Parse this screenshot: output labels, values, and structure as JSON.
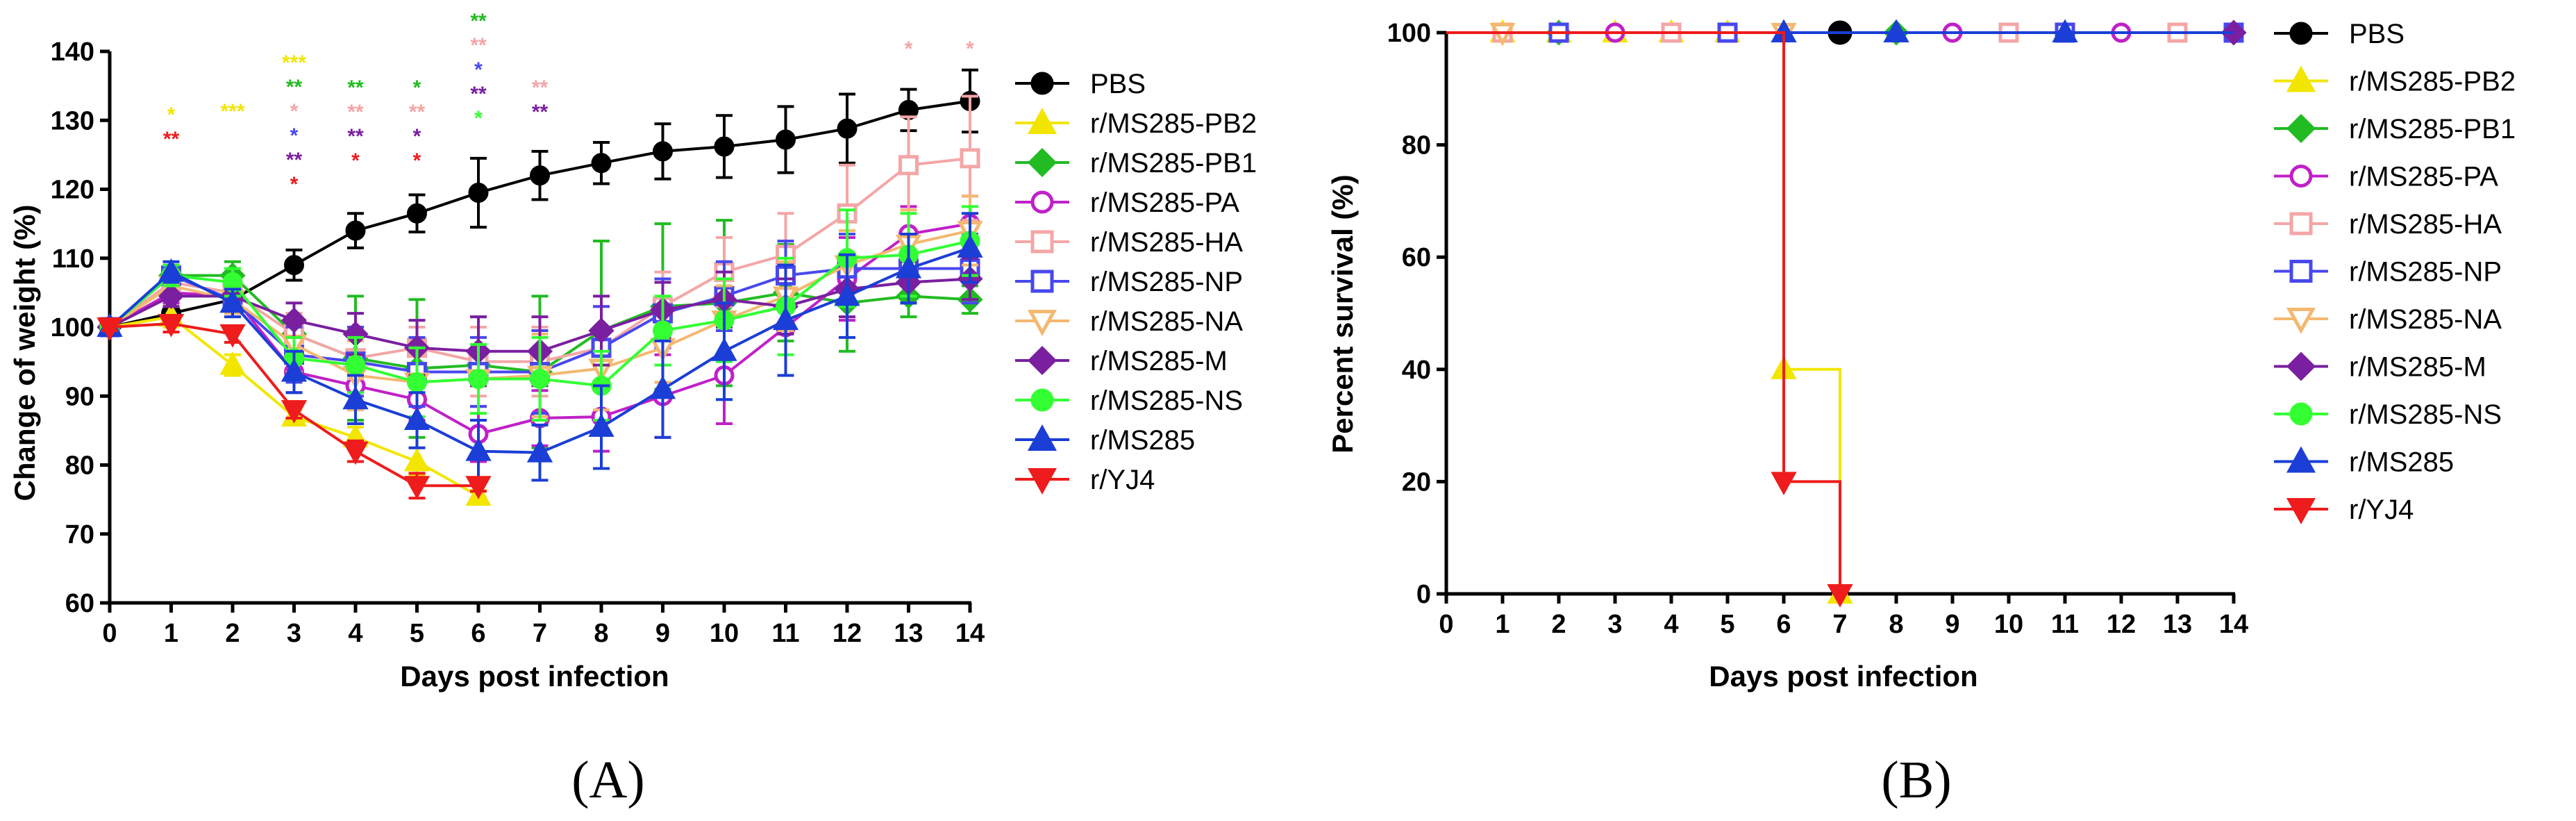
{
  "chart_data": [
    {
      "id": "A",
      "type": "line",
      "panel_label": "(A)",
      "xlabel": "Days post infection",
      "ylabel": "Change of weight (%)",
      "xlim": [
        0,
        14
      ],
      "ylim": [
        60,
        140
      ],
      "xticks": [
        0,
        1,
        2,
        3,
        4,
        5,
        6,
        7,
        8,
        9,
        10,
        11,
        12,
        13,
        14
      ],
      "yticks": [
        60,
        70,
        80,
        90,
        100,
        110,
        120,
        130,
        140
      ],
      "legend_position": "right",
      "series": [
        {
          "name": "PBS",
          "color": "#000000",
          "marker": "circle",
          "filled": true,
          "x": [
            0,
            1,
            2,
            3,
            4,
            5,
            6,
            7,
            8,
            9,
            10,
            11,
            12,
            13,
            14
          ],
          "y": [
            100,
            102,
            104,
            109,
            114,
            116.5,
            119.5,
            122,
            123.8,
            125.5,
            126.2,
            127.2,
            128.8,
            131.5,
            132.8
          ],
          "err": [
            0.5,
            1.5,
            1.5,
            2.2,
            2.5,
            2.7,
            5,
            3.5,
            3,
            4,
            4.5,
            4.8,
            5,
            3,
            4.5
          ]
        },
        {
          "name": "r/MS285-PB2",
          "color": "#f2e600",
          "marker": "triangle-up",
          "filled": true,
          "x": [
            0,
            1,
            2,
            3,
            4,
            5,
            6
          ],
          "y": [
            100,
            101.5,
            94.5,
            87,
            84,
            80.5,
            75.5
          ],
          "err": [
            0.5,
            1.5,
            1.5,
            1,
            1.5,
            2,
            0.8
          ]
        },
        {
          "name": "r/MS285-PB1",
          "color": "#22bb22",
          "marker": "diamond",
          "filled": true,
          "x": [
            0,
            1,
            2,
            3,
            4,
            5,
            6,
            7,
            8,
            9,
            10,
            11,
            12,
            13,
            14
          ],
          "y": [
            100,
            107.5,
            107.5,
            99,
            95.5,
            94,
            94.5,
            93.5,
            99.5,
            103,
            103.5,
            105,
            103.5,
            104.5,
            104
          ],
          "err": [
            0.5,
            1.5,
            2,
            3,
            9,
            10,
            7,
            11,
            13,
            12,
            12,
            7,
            7,
            3,
            2
          ]
        },
        {
          "name": "r/MS285-PA",
          "color": "#c020c8",
          "marker": "circle",
          "filled": false,
          "x": [
            0,
            1,
            2,
            3,
            4,
            5,
            6,
            7,
            8,
            9,
            10,
            11,
            12,
            13,
            14
          ],
          "y": [
            100,
            105,
            104.5,
            93.5,
            91.5,
            89.5,
            84.5,
            86.8,
            87,
            90,
            93,
            100,
            107,
            113.5,
            115
          ],
          "err": [
            0.5,
            1.5,
            1.5,
            3,
            3,
            3,
            4,
            4,
            5,
            6,
            7,
            7,
            6,
            4,
            4
          ]
        },
        {
          "name": "r/MS285-HA",
          "color": "#f4a6a6",
          "marker": "square",
          "filled": false,
          "x": [
            0,
            1,
            2,
            3,
            4,
            5,
            6,
            7,
            8,
            9,
            10,
            11,
            12,
            13,
            14
          ],
          "y": [
            100,
            106.5,
            105,
            99,
            95.5,
            97,
            95,
            95,
            97,
            103,
            108,
            110.5,
            116.5,
            123.5,
            124.5
          ],
          "err": [
            0.5,
            1.5,
            1.5,
            3,
            3,
            3,
            5,
            5,
            6,
            5,
            5,
            6,
            7,
            7,
            9
          ]
        },
        {
          "name": "r/MS285-NP",
          "color": "#4848ee",
          "marker": "square",
          "filled": false,
          "x": [
            0,
            1,
            2,
            3,
            4,
            5,
            6,
            7,
            8,
            9,
            10,
            11,
            12,
            13,
            14
          ],
          "y": [
            100,
            107.5,
            104,
            96,
            95,
            93.5,
            93.5,
            93.5,
            97,
            102,
            104.5,
            107.5,
            108.5,
            108.5,
            108.5
          ],
          "err": [
            0.5,
            1.5,
            2,
            4,
            5,
            5,
            5,
            6,
            6,
            5,
            5,
            5,
            5,
            5,
            5
          ]
        },
        {
          "name": "r/MS285-NA",
          "color": "#f4b870",
          "marker": "triangle-down",
          "filled": false,
          "x": [
            0,
            1,
            2,
            3,
            4,
            5,
            6,
            7,
            8,
            9,
            10,
            11,
            12,
            13,
            14
          ],
          "y": [
            100,
            106,
            104,
            97.5,
            93,
            92,
            92.5,
            93,
            94,
            97,
            101,
            104.5,
            109,
            112,
            114
          ],
          "err": [
            0.5,
            1.5,
            2,
            4,
            5,
            5,
            5,
            6,
            6,
            5,
            5,
            5,
            5,
            5,
            5
          ]
        },
        {
          "name": "r/MS285-M",
          "color": "#7a1fa0",
          "marker": "diamond",
          "filled": true,
          "x": [
            0,
            1,
            2,
            3,
            4,
            5,
            6,
            7,
            8,
            9,
            10,
            11,
            12,
            13,
            14
          ],
          "y": [
            100,
            104.5,
            104.5,
            101,
            99,
            97,
            96.5,
            96.5,
            99.5,
            102.5,
            104,
            103,
            105.5,
            106.5,
            107
          ],
          "err": [
            0.5,
            1.5,
            1.5,
            2.5,
            3,
            4,
            5,
            5,
            5,
            4,
            4,
            4,
            4,
            3,
            3
          ]
        },
        {
          "name": "r/MS285-NS",
          "color": "#33ff33",
          "marker": "circle",
          "filled": true,
          "x": [
            0,
            1,
            2,
            3,
            4,
            5,
            6,
            7,
            8,
            9,
            10,
            11,
            12,
            13,
            14
          ],
          "y": [
            100,
            107.5,
            106.5,
            95.5,
            94.5,
            92,
            92.5,
            92.5,
            91.5,
            99.5,
            101,
            103,
            110,
            110.5,
            112.5
          ],
          "err": [
            0.5,
            1.5,
            2,
            3,
            4,
            5,
            5,
            6,
            5,
            5,
            6,
            7,
            7,
            6,
            5
          ]
        },
        {
          "name": "r/MS285",
          "color": "#1a3ed6",
          "marker": "triangle-up",
          "filled": true,
          "x": [
            0,
            1,
            2,
            3,
            4,
            5,
            6,
            7,
            8,
            9,
            10,
            11,
            12,
            13,
            14
          ],
          "y": [
            100,
            108,
            103.5,
            93.5,
            89.5,
            86.5,
            82,
            81.8,
            85.5,
            91,
            96.5,
            101,
            104.5,
            108.5,
            111.5
          ],
          "err": [
            0.5,
            1.5,
            2,
            3,
            3.5,
            4,
            4.5,
            4,
            6,
            7,
            7,
            8,
            6,
            5,
            5
          ]
        },
        {
          "name": "r/YJ4",
          "color": "#ee1c1c",
          "marker": "triangle-down",
          "filled": true,
          "x": [
            0,
            1,
            2,
            3,
            4,
            5,
            6
          ],
          "y": [
            100,
            100.5,
            99,
            88,
            82,
            77,
            77
          ],
          "err": [
            0.5,
            1.2,
            1.2,
            1.2,
            1.5,
            1.8,
            0.8
          ]
        }
      ],
      "significance": [
        {
          "day": 1,
          "marks": [
            {
              "text": "*",
              "color": "#f2e600"
            },
            {
              "text": "**",
              "color": "#ee1c1c"
            }
          ]
        },
        {
          "day": 2,
          "marks": [
            {
              "text": "***",
              "color": "#f2e600"
            }
          ]
        },
        {
          "day": 3,
          "marks": [
            {
              "text": "***",
              "color": "#f2e600"
            },
            {
              "text": "**",
              "color": "#22bb22"
            },
            {
              "text": "*",
              "color": "#f4a6a6"
            },
            {
              "text": "*",
              "color": "#4848ee"
            },
            {
              "text": "**",
              "color": "#7a1fa0"
            },
            {
              "text": "*",
              "color": "#ee1c1c"
            }
          ]
        },
        {
          "day": 4,
          "marks": [
            {
              "text": "**",
              "color": "#22bb22"
            },
            {
              "text": "**",
              "color": "#f4a6a6"
            },
            {
              "text": "**",
              "color": "#7a1fa0"
            },
            {
              "text": "*",
              "color": "#ee1c1c"
            }
          ]
        },
        {
          "day": 5,
          "marks": [
            {
              "text": "*",
              "color": "#22bb22"
            },
            {
              "text": "**",
              "color": "#f4a6a6"
            },
            {
              "text": "*",
              "color": "#7a1fa0"
            },
            {
              "text": "*",
              "color": "#ee1c1c"
            }
          ]
        },
        {
          "day": 6,
          "marks": [
            {
              "text": "**",
              "color": "#22bb22"
            },
            {
              "text": "**",
              "color": "#f4a6a6"
            },
            {
              "text": "*",
              "color": "#4848ee"
            },
            {
              "text": "**",
              "color": "#7a1fa0"
            },
            {
              "text": "*",
              "color": "#33ff33"
            }
          ]
        },
        {
          "day": 7,
          "marks": [
            {
              "text": "**",
              "color": "#f4a6a6"
            },
            {
              "text": "**",
              "color": "#7a1fa0"
            }
          ]
        },
        {
          "day": 13,
          "marks": [
            {
              "text": "*",
              "color": "#f4a6a6"
            }
          ]
        },
        {
          "day": 14,
          "marks": [
            {
              "text": "*",
              "color": "#f4a6a6"
            }
          ]
        }
      ]
    },
    {
      "id": "B",
      "type": "line",
      "subtype": "survival-step",
      "panel_label": "(B)",
      "xlabel": "Days post infection",
      "ylabel": "Percent survival (%)",
      "xlim": [
        0,
        14
      ],
      "ylim": [
        0,
        100
      ],
      "xticks": [
        0,
        1,
        2,
        3,
        4,
        5,
        6,
        7,
        8,
        9,
        10,
        11,
        12,
        13,
        14
      ],
      "yticks": [
        0,
        20,
        40,
        60,
        80,
        100
      ],
      "legend_position": "right",
      "series": [
        {
          "name": "PBS",
          "color": "#000000",
          "marker": "circle",
          "filled": true,
          "big": true,
          "steps": [
            [
              0,
              100
            ],
            [
              14,
              100
            ]
          ],
          "markers_x": [
            7
          ]
        },
        {
          "name": "r/MS285-PB2",
          "color": "#f2e600",
          "marker": "triangle-up",
          "filled": true,
          "steps": [
            [
              0,
              100
            ],
            [
              6,
              100
            ],
            [
              6,
              40
            ],
            [
              7,
              40
            ],
            [
              7,
              0
            ]
          ],
          "markers_x": [
            1,
            2,
            3,
            4,
            5,
            6,
            7
          ]
        },
        {
          "name": "r/MS285-PB1",
          "color": "#22bb22",
          "marker": "diamond",
          "filled": true,
          "steps": [
            [
              0,
              100
            ],
            [
              14,
              100
            ]
          ],
          "markers_x": [
            2,
            8
          ]
        },
        {
          "name": "r/MS285-PA",
          "color": "#c020c8",
          "marker": "circle",
          "filled": false,
          "steps": [
            [
              0,
              100
            ],
            [
              14,
              100
            ]
          ],
          "markers_x": [
            3,
            9,
            12
          ]
        },
        {
          "name": "r/MS285-HA",
          "color": "#f4a6a6",
          "marker": "square",
          "filled": false,
          "steps": [
            [
              0,
              100
            ],
            [
              14,
              100
            ]
          ],
          "markers_x": [
            1,
            4,
            10,
            13
          ]
        },
        {
          "name": "r/MS285-NP",
          "color": "#4848ee",
          "marker": "square",
          "filled": false,
          "steps": [
            [
              0,
              100
            ],
            [
              14,
              100
            ]
          ],
          "markers_x": [
            2,
            5,
            11,
            14
          ]
        },
        {
          "name": "r/MS285-NA",
          "color": "#f4b870",
          "marker": "triangle-down",
          "filled": false,
          "steps": [
            [
              0,
              100
            ],
            [
              14,
              100
            ]
          ],
          "markers_x": [
            1,
            6
          ]
        },
        {
          "name": "r/MS285-M",
          "color": "#7a1fa0",
          "marker": "diamond",
          "filled": true,
          "steps": [
            [
              0,
              100
            ],
            [
              14,
              100
            ]
          ],
          "markers_x": [
            14
          ]
        },
        {
          "name": "r/MS285-NS",
          "color": "#33ff33",
          "marker": "circle",
          "filled": true,
          "steps": [
            [
              0,
              100
            ],
            [
              14,
              100
            ]
          ],
          "markers_x": []
        },
        {
          "name": "r/MS285",
          "color": "#1a3ed6",
          "marker": "triangle-up",
          "filled": true,
          "steps": [
            [
              0,
              100
            ],
            [
              14,
              100
            ]
          ],
          "markers_x": [
            6,
            8,
            11
          ]
        },
        {
          "name": "r/YJ4",
          "color": "#ee1c1c",
          "marker": "triangle-down",
          "filled": true,
          "steps": [
            [
              0,
              100
            ],
            [
              6,
              100
            ],
            [
              6,
              20
            ],
            [
              7,
              20
            ],
            [
              7,
              0
            ]
          ],
          "markers_x": [
            6,
            7
          ]
        }
      ]
    }
  ]
}
